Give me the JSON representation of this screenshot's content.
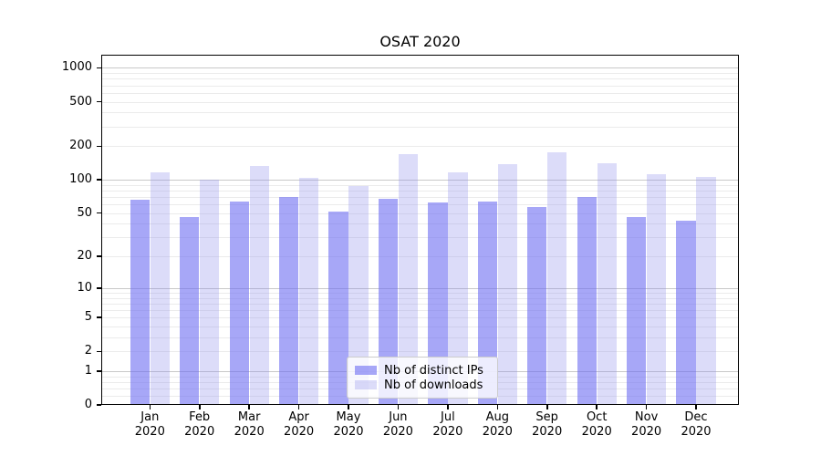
{
  "title": "OSAT 2020",
  "chart_data": {
    "type": "bar",
    "title": "OSAT 2020",
    "categories": [
      "Jan 2020",
      "Feb 2020",
      "Mar 2020",
      "Apr 2020",
      "May 2020",
      "Jun 2020",
      "Jul 2020",
      "Aug 2020",
      "Sep 2020",
      "Oct 2020",
      "Nov 2020",
      "Dec 2020"
    ],
    "series": [
      {
        "name": "Nb of distinct IPs",
        "color_hex": "#6C6CF2",
        "alpha": 0.6,
        "values": [
          66,
          46,
          64,
          70,
          52,
          67,
          62,
          64,
          57,
          70,
          46,
          43
        ]
      },
      {
        "name": "Nb of downloads",
        "color_hex": "#8C8CEB",
        "alpha": 0.3,
        "values": [
          116,
          101,
          132,
          105,
          88,
          169,
          117,
          138,
          178,
          142,
          113,
          107
        ]
      }
    ],
    "xlabel": "",
    "ylabel": "",
    "yscale": "symlog",
    "yticks": [
      1000,
      500,
      200,
      100,
      50,
      20,
      10,
      5,
      2,
      1,
      0
    ],
    "ylim": [
      0,
      1310
    ],
    "grid": true,
    "legend_position": "lower center",
    "colors": {
      "background": "#ffffff",
      "frame": "#000000",
      "grid_major": "#c9c9c9",
      "grid_minor": "#ebebeb",
      "tick_label": "#000000",
      "legend_border": "#cccccc",
      "legend_bg": "#ffffff"
    }
  }
}
